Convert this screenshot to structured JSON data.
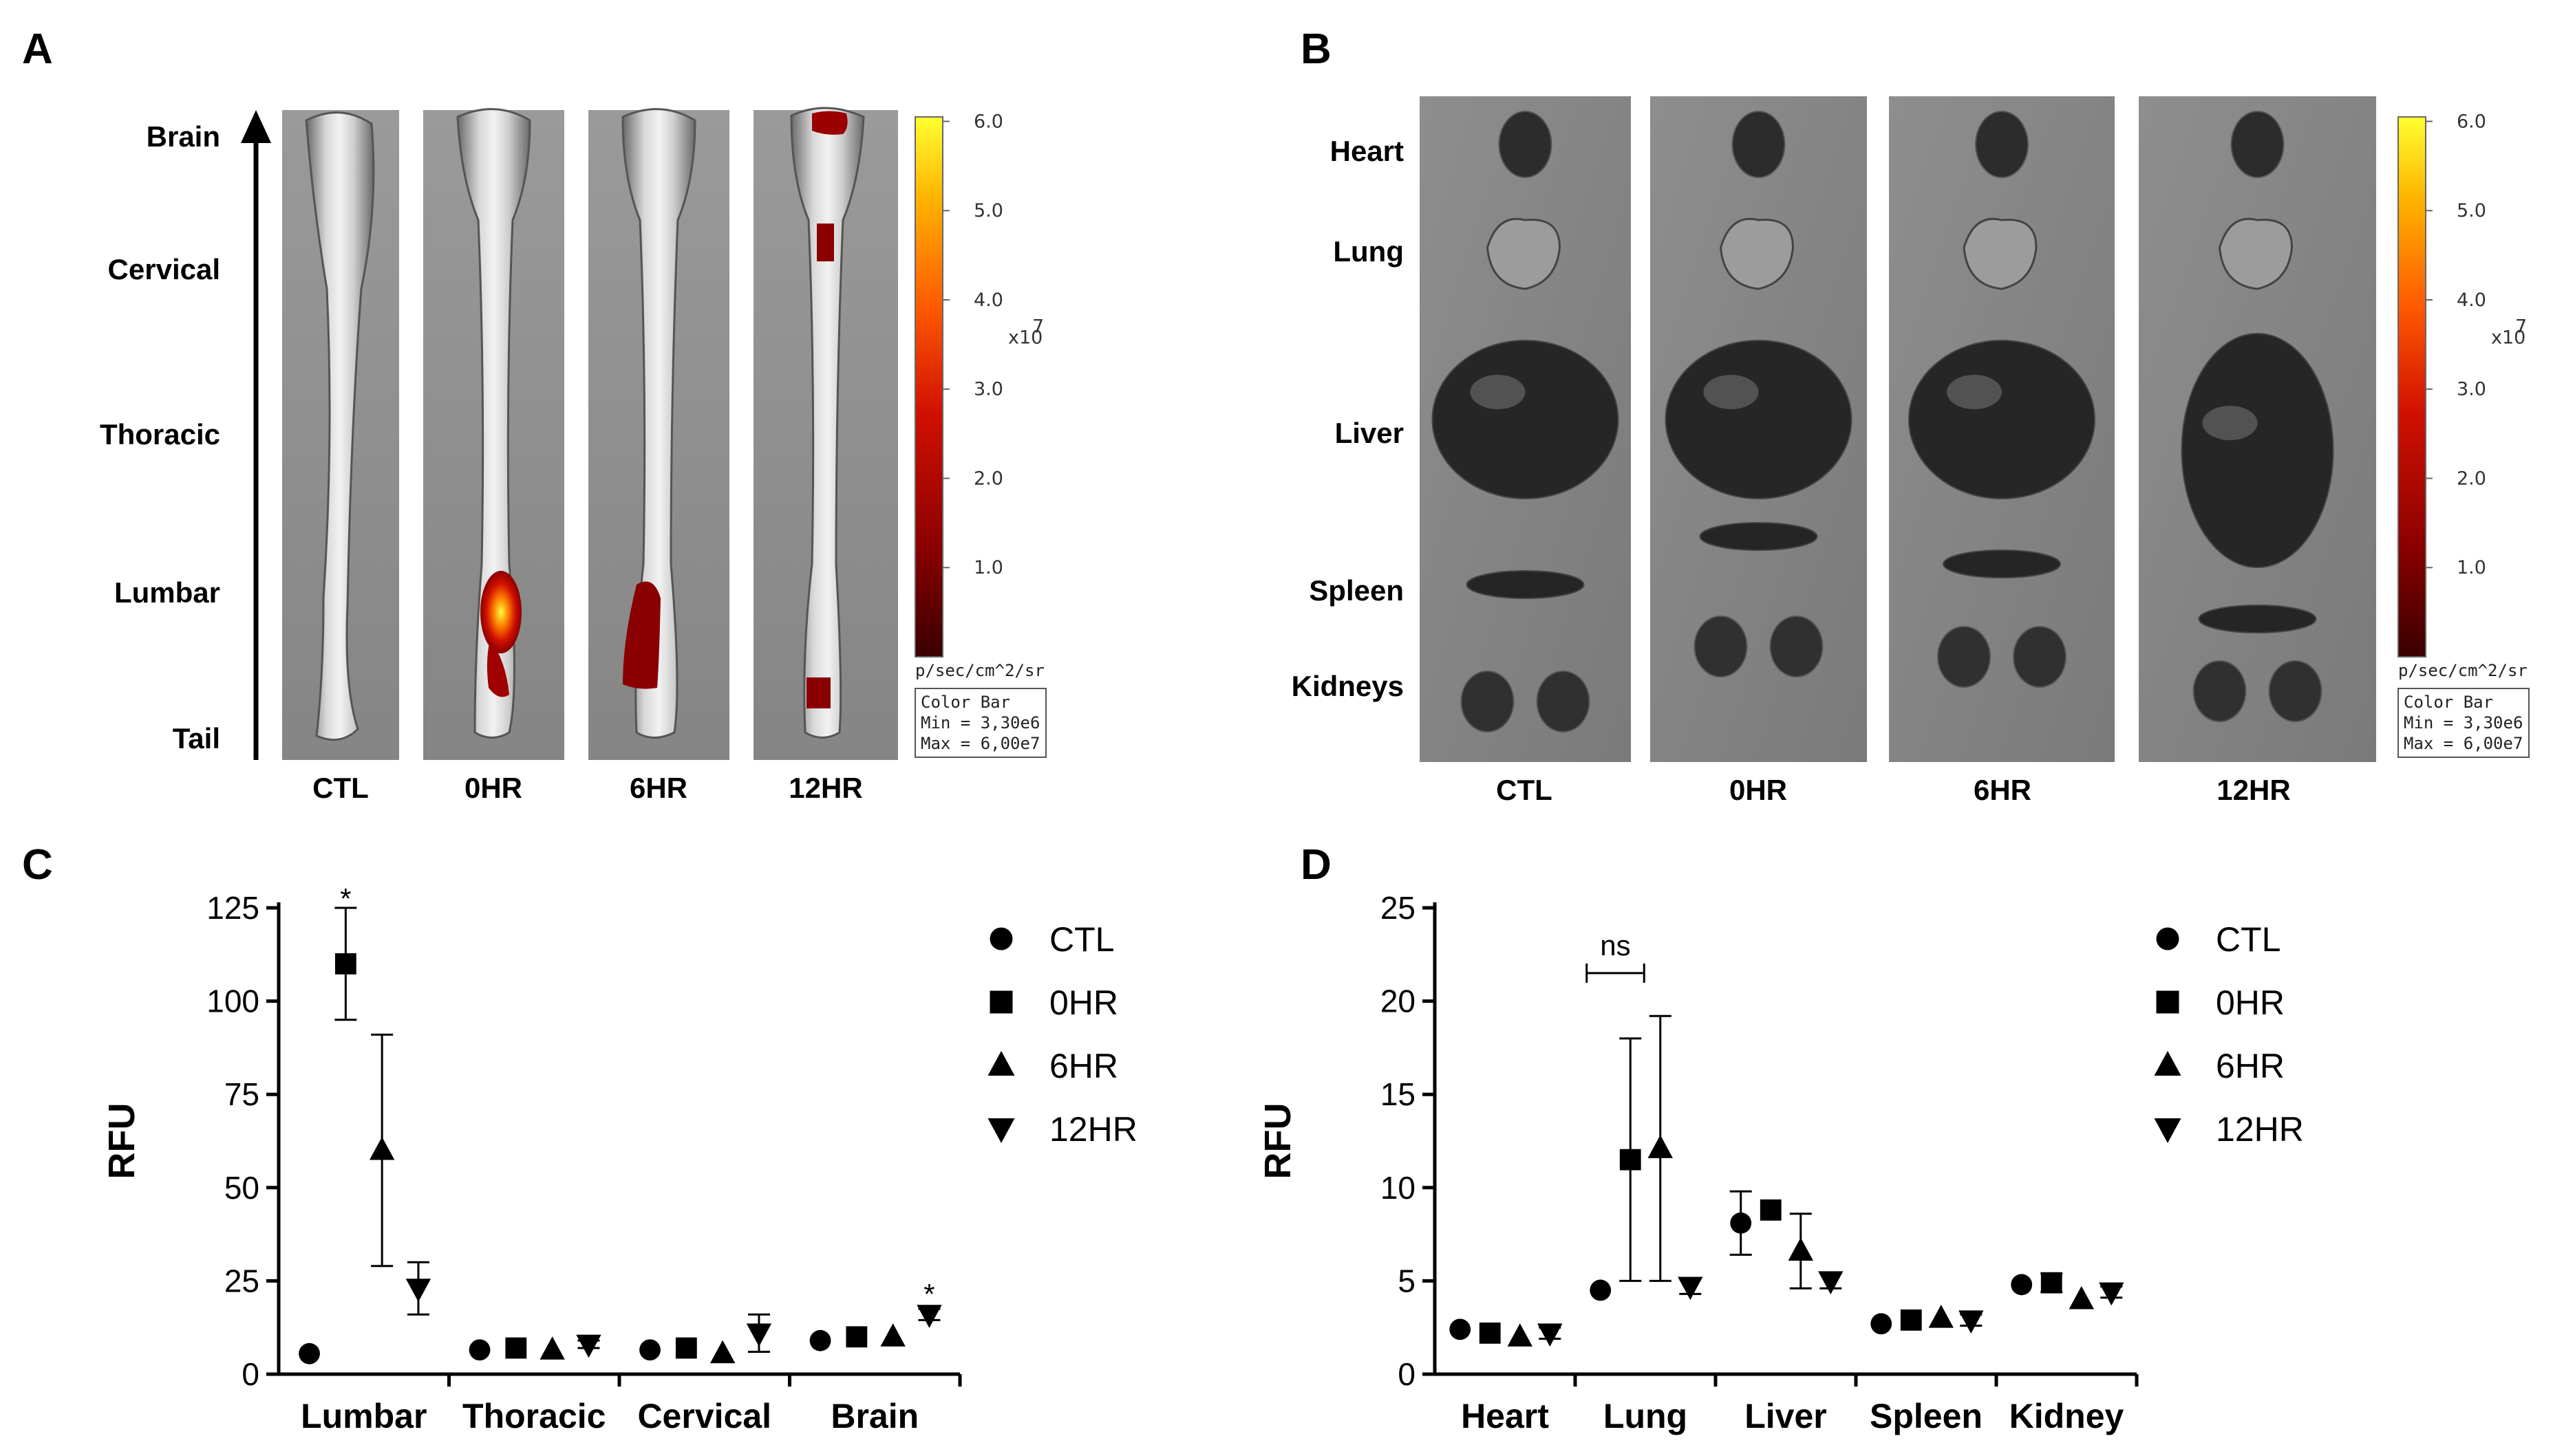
{
  "panels": {
    "A": {
      "letter": "A",
      "regions": [
        "Brain",
        "Cervical",
        "Thoracic",
        "Lumbar",
        "Tail"
      ],
      "conditions": [
        "CTL",
        "0HR",
        "6HR",
        "12HR"
      ]
    },
    "B": {
      "letter": "B",
      "organs": [
        "Heart",
        "Lung",
        "Liver",
        "Spleen",
        "Kidneys"
      ],
      "conditions": [
        "CTL",
        "0HR",
        "6HR",
        "12HR"
      ]
    },
    "C": {
      "letter": "C"
    },
    "D": {
      "letter": "D"
    }
  },
  "colorbar": {
    "ticks": [
      "6.0",
      "5.0",
      "4.0",
      "3.0",
      "2.0",
      "1.0"
    ],
    "exponent_base": "x10",
    "exponent": "7",
    "unit": "p/sec/cm^2/sr",
    "box_title": "Color Bar",
    "box_min": "Min = 3,30e6",
    "box_max": "Max = 6,00e7",
    "colors": [
      "#3a0000",
      "#8a0000",
      "#d01000",
      "#ff5a00",
      "#ffb400",
      "#ffff30"
    ]
  },
  "chart_data": [
    {
      "type": "scatter",
      "panel": "C",
      "categories": [
        "Lumbar",
        "Thoracic",
        "Cervical",
        "Brain"
      ],
      "ylabel": "RFU",
      "ylim": [
        0,
        125
      ],
      "yticks": [
        0,
        25,
        50,
        75,
        100,
        125
      ],
      "series": [
        {
          "name": "CTL",
          "marker": "circle",
          "values": [
            5.5,
            6.5,
            6.5,
            9
          ],
          "err": [
            0,
            0,
            0,
            0
          ]
        },
        {
          "name": "0HR",
          "marker": "square",
          "values": [
            110,
            7,
            7,
            10
          ],
          "err": [
            15,
            0,
            0,
            0
          ]
        },
        {
          "name": "6HR",
          "marker": "triangle-up",
          "values": [
            60,
            6.5,
            5.5,
            10
          ],
          "err": [
            31,
            0,
            0,
            0
          ]
        },
        {
          "name": "12HR",
          "marker": "triangle-down",
          "values": [
            23,
            8,
            11,
            16
          ],
          "err": [
            7,
            1,
            5,
            1.5
          ]
        }
      ],
      "annotations": [
        {
          "text": "*",
          "category": "Lumbar",
          "series": "0HR",
          "y": 127
        },
        {
          "text": "*",
          "category": "Brain",
          "series": "12HR",
          "y": 21
        }
      ],
      "legend": "right"
    },
    {
      "type": "scatter",
      "panel": "D",
      "categories": [
        "Heart",
        "Lung",
        "Liver",
        "Spleen",
        "Kidney"
      ],
      "ylabel": "RFU",
      "ylim": [
        0,
        25
      ],
      "yticks": [
        0,
        5,
        10,
        15,
        20,
        25
      ],
      "series": [
        {
          "name": "CTL",
          "marker": "circle",
          "values": [
            2.4,
            4.5,
            8.1,
            2.7,
            4.8
          ],
          "err": [
            0,
            0,
            1.7,
            0,
            0
          ]
        },
        {
          "name": "0HR",
          "marker": "square",
          "values": [
            2.2,
            11.5,
            8.8,
            2.9,
            4.9
          ],
          "err": [
            0,
            6.5,
            0,
            0,
            0.5
          ]
        },
        {
          "name": "6HR",
          "marker": "triangle-up",
          "values": [
            2.0,
            12.1,
            6.6,
            3.0,
            4.0
          ],
          "err": [
            0,
            7.1,
            2.0,
            0,
            0
          ]
        },
        {
          "name": "12HR",
          "marker": "triangle-down",
          "values": [
            2.2,
            4.7,
            5.0,
            2.9,
            4.4
          ],
          "err": [
            0.3,
            0.4,
            0.4,
            0.3,
            0.3
          ]
        }
      ],
      "annotations": [
        {
          "text": "ns",
          "from": [
            "Lung",
            "CTL"
          ],
          "to": [
            "Lung",
            "0HR"
          ],
          "y": 21.5
        }
      ],
      "legend": "right"
    }
  ]
}
